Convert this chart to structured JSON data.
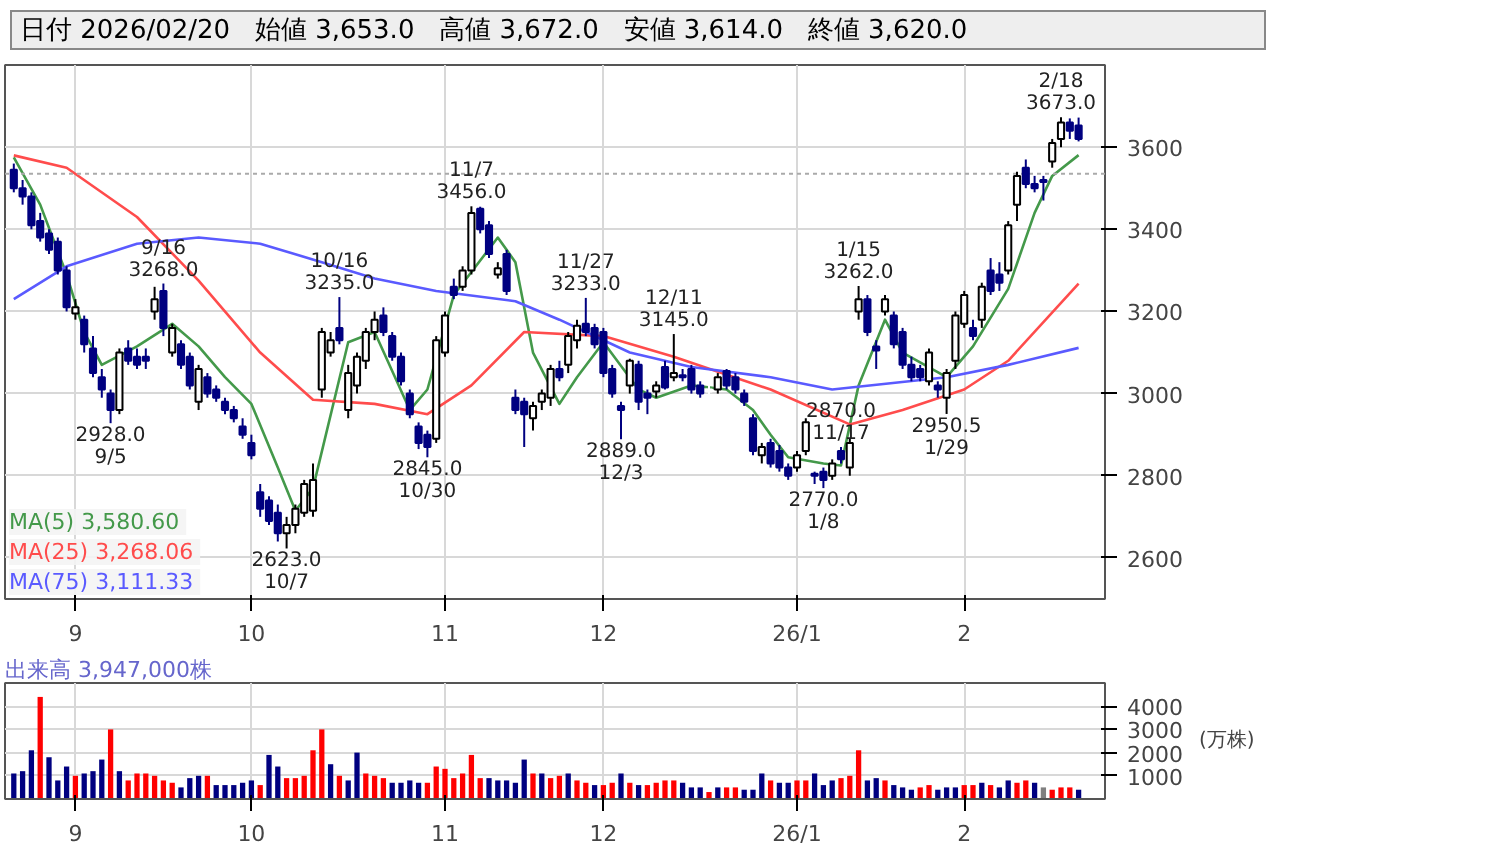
{
  "chart_data": [
    {
      "type": "candlestick",
      "colors": [
        "#000080",
        "#000080",
        "#000080",
        "#000080",
        "#000080",
        "#000080",
        "#000080",
        "#ffffff",
        "#000080",
        "#000080",
        "#000080",
        "#000080",
        "#ffffff",
        "#000080",
        "#000080",
        "#000080",
        "#ffffff",
        "#000080",
        "#ffffff",
        "#000080",
        "#000080",
        "#ffffff",
        "#000080",
        "#000080",
        "#000080",
        "#000080",
        "#000080",
        "#000080",
        "#000080",
        "#000080",
        "#000080",
        "#ffffff",
        "#ffffff",
        "#ffffff",
        "#ffffff",
        "#ffffff",
        "#ffffff",
        "#000080",
        "#ffffff",
        "#ffffff",
        "#ffffff",
        "#ffffff",
        "#000080",
        "#000080",
        "#000080",
        "#000080",
        "#000080",
        "#000080",
        "#ffffff",
        "#ffffff",
        "#000080",
        "#ffffff",
        "#ffffff",
        "#000080",
        "#000080",
        "#ffffff",
        "#000080",
        "#000080",
        "#000080",
        "#ffffff",
        "#ffffff",
        "#ffffff",
        "#000080",
        "#ffffff",
        "#ffffff",
        "#000080",
        "#000080",
        "#000080",
        "#000080",
        "#000080",
        "#ffffff",
        "#000080",
        "#000080",
        "#ffffff",
        "#000080",
        "#ffffff",
        "#000080",
        "#000080",
        "#000080",
        "#ffffff",
        "#ffffff",
        "#000080",
        "#000080",
        "#000080",
        "#000080",
        "#ffffff",
        "#000080",
        "#000080",
        "#000080",
        "#ffffff",
        "#ffffff",
        "#000080",
        "#000080",
        "#ffffff",
        "#000080",
        "#ffffff",
        "#ffffff",
        "#000080",
        "#000080",
        "#ffffff",
        "#000080",
        "#000080",
        "#000080",
        "#000080",
        "#ffffff",
        "#000080",
        "#ffffff",
        "#ffffff",
        "#ffffff",
        "#000080",
        "#ffffff",
        "#000080",
        "#000080",
        "#ffffff",
        "#ffffff",
        "#000080",
        "#000080",
        "#000080",
        "#ffffff",
        "#ffffff",
        "#000080",
        "#000080"
      ],
      "annotations": [
        "日付 2026/02/20",
        "始値 3,653.0",
        "高値 3,672.0",
        "安値 3,614.0",
        "終値 3,620.0",
        {
          "text": "2928.0\n9/5",
          "y": 2928
        },
        {
          "text": "9/16\n3268.0",
          "y": 3268
        },
        {
          "text": "2623.0\n10/7",
          "y": 2623
        },
        {
          "text": "10/16\n3235.0",
          "y": 3235
        },
        {
          "text": "2845.0\n10/30",
          "y": 2845
        },
        {
          "text": "11/7\n3456.0",
          "y": 3456
        },
        {
          "text": "2870.0\n11/17",
          "y": 2870
        },
        {
          "text": "11/27\n3233.0",
          "y": 3233
        },
        {
          "text": "2889.0\n12/3",
          "y": 2889
        },
        {
          "text": "12/11\n3145.0",
          "y": 3145
        },
        {
          "text": "2770.0\n1/8",
          "y": 2770
        },
        {
          "text": "1/15\n3262.0",
          "y": 3262
        },
        {
          "text": "2950.5\n1/29",
          "y": 2950.5
        },
        {
          "text": "2/18\n3673.0",
          "y": 3673
        }
      ],
      "categories": [
        null,
        null,
        null,
        null,
        null,
        null,
        null,
        "9",
        null,
        null,
        null,
        null,
        null,
        null,
        null,
        null,
        null,
        null,
        null,
        null,
        null,
        null,
        null,
        null,
        null,
        null,
        null,
        "10",
        null,
        null,
        null,
        null,
        null,
        null,
        null,
        null,
        null,
        null,
        null,
        null,
        null,
        null,
        null,
        null,
        null,
        null,
        null,
        null,
        null,
        "11",
        null,
        null,
        null,
        null,
        null,
        null,
        null,
        null,
        null,
        null,
        null,
        null,
        null,
        null,
        null,
        null,
        null,
        "12",
        null,
        null,
        null,
        null,
        null,
        null,
        null,
        null,
        null,
        null,
        null,
        null,
        null,
        null,
        null,
        null,
        null,
        null,
        null,
        null,
        null,
        "26/1",
        null,
        null,
        null,
        null,
        null,
        null,
        null,
        null,
        null,
        null,
        null,
        null,
        null,
        null,
        null,
        null,
        null,
        null,
        "2",
        null,
        null,
        null,
        null,
        null,
        null,
        null,
        null,
        null,
        null,
        null,
        null,
        null
      ],
      "ohlc": [
        [
          3545,
          3560,
          3490,
          3500
        ],
        [
          3500,
          3520,
          3460,
          3480
        ],
        [
          3480,
          3490,
          3400,
          3410
        ],
        [
          3420,
          3440,
          3370,
          3380
        ],
        [
          3390,
          3400,
          3340,
          3350
        ],
        [
          3370,
          3380,
          3290,
          3300
        ],
        [
          3300,
          3310,
          3200,
          3210
        ],
        [
          3195,
          3230,
          3180,
          3210
        ],
        [
          3180,
          3190,
          3100,
          3120
        ],
        [
          3110,
          3140,
          3040,
          3050
        ],
        [
          3040,
          3060,
          2990,
          3010
        ],
        [
          3000,
          3010,
          2928,
          2960
        ],
        [
          2960,
          3110,
          2950,
          3100
        ],
        [
          3110,
          3130,
          3070,
          3080
        ],
        [
          3090,
          3110,
          3060,
          3070
        ],
        [
          3090,
          3110,
          3060,
          3080
        ],
        [
          3200,
          3260,
          3180,
          3230
        ],
        [
          3250,
          3268,
          3140,
          3160
        ],
        [
          3100,
          3170,
          3090,
          3160
        ],
        [
          3120,
          3130,
          3060,
          3070
        ],
        [
          3090,
          3100,
          3010,
          3020
        ],
        [
          2980,
          3070,
          2960,
          3060
        ],
        [
          3040,
          3050,
          2990,
          3000
        ],
        [
          3010,
          3020,
          2980,
          2990
        ],
        [
          2980,
          2990,
          2950,
          2960
        ],
        [
          2960,
          2970,
          2930,
          2940
        ],
        [
          2920,
          2940,
          2890,
          2900
        ],
        [
          2880,
          2900,
          2840,
          2850
        ],
        [
          2760,
          2780,
          2700,
          2720
        ],
        [
          2740,
          2750,
          2680,
          2690
        ],
        [
          2710,
          2730,
          2640,
          2660
        ],
        [
          2660,
          2700,
          2623,
          2680
        ],
        [
          2680,
          2730,
          2660,
          2720
        ],
        [
          2710,
          2790,
          2700,
          2780
        ],
        [
          2715,
          2830,
          2700,
          2790
        ],
        [
          3010,
          3160,
          2990,
          3150
        ],
        [
          3100,
          3150,
          3090,
          3130
        ],
        [
          3160,
          3235,
          3120,
          3130
        ],
        [
          2960,
          3070,
          2940,
          3050
        ],
        [
          3020,
          3100,
          3000,
          3090
        ],
        [
          3080,
          3160,
          3060,
          3150
        ],
        [
          3150,
          3200,
          3130,
          3180
        ],
        [
          3190,
          3210,
          3140,
          3150
        ],
        [
          3140,
          3150,
          3080,
          3090
        ],
        [
          3090,
          3100,
          3020,
          3030
        ],
        [
          3000,
          3010,
          2940,
          2950
        ],
        [
          2920,
          2930,
          2865,
          2880
        ],
        [
          2900,
          2910,
          2845,
          2870
        ],
        [
          2890,
          3140,
          2880,
          3130
        ],
        [
          3100,
          3200,
          3090,
          3190
        ],
        [
          3260,
          3280,
          3230,
          3240
        ],
        [
          3260,
          3310,
          3250,
          3300
        ],
        [
          3300,
          3456,
          3290,
          3440
        ],
        [
          3450,
          3455,
          3390,
          3400
        ],
        [
          3410,
          3420,
          3330,
          3340
        ],
        [
          3290,
          3320,
          3280,
          3305
        ],
        [
          3340,
          3350,
          3240,
          3250
        ],
        [
          2990,
          3010,
          2950,
          2960
        ],
        [
          2980,
          2990,
          2870,
          2950
        ],
        [
          2940,
          2980,
          2910,
          2970
        ],
        [
          2980,
          3010,
          2960,
          3000
        ],
        [
          2990,
          3070,
          2970,
          3060
        ],
        [
          3060,
          3080,
          3030,
          3040
        ],
        [
          3070,
          3150,
          3050,
          3140
        ],
        [
          3130,
          3180,
          3110,
          3165
        ],
        [
          3170,
          3233,
          3140,
          3150
        ],
        [
          3160,
          3170,
          3110,
          3120
        ],
        [
          3150,
          3160,
          3040,
          3050
        ],
        [
          3060,
          3070,
          2990,
          3000
        ],
        [
          2970,
          2980,
          2889,
          2960
        ],
        [
          3020,
          3085,
          3000,
          3080
        ],
        [
          3070,
          3080,
          2960,
          2980
        ],
        [
          3000,
          3010,
          2950,
          2990
        ],
        [
          3005,
          3030,
          2990,
          3020
        ],
        [
          3065,
          3080,
          3010,
          3015
        ],
        [
          3040,
          3145,
          3030,
          3050
        ],
        [
          3045,
          3060,
          3030,
          3040
        ],
        [
          3060,
          3070,
          3000,
          3010
        ],
        [
          3020,
          3030,
          2990,
          3000
        ],
        [
          3010,
          3020,
          2990,
          3005
        ],
        [
          3010,
          3050,
          3000,
          3040
        ],
        [
          3055,
          3060,
          3010,
          3020
        ],
        [
          3040,
          3050,
          3000,
          3010
        ],
        [
          3000,
          3010,
          2970,
          2980
        ],
        [
          2940,
          2950,
          2850,
          2860
        ],
        [
          2850,
          2880,
          2830,
          2870
        ],
        [
          2880,
          2890,
          2820,
          2830
        ],
        [
          2860,
          2875,
          2810,
          2820
        ],
        [
          2820,
          2830,
          2790,
          2800
        ],
        [
          2820,
          2860,
          2810,
          2850
        ],
        [
          2860,
          2940,
          2850,
          2930
        ],
        [
          2805,
          2810,
          2780,
          2800
        ],
        [
          2810,
          2820,
          2770,
          2790
        ],
        [
          2800,
          2840,
          2790,
          2830
        ],
        [
          2860,
          2870,
          2830,
          2840
        ],
        [
          2820,
          2890,
          2800,
          2880
        ],
        [
          3200,
          3262,
          3180,
          3230
        ],
        [
          3230,
          3240,
          3140,
          3150
        ],
        [
          3115,
          3130,
          3060,
          3105
        ],
        [
          3200,
          3240,
          3190,
          3230
        ],
        [
          3190,
          3200,
          3110,
          3120
        ],
        [
          3150,
          3160,
          3060,
          3070
        ],
        [
          3070,
          3090,
          3030,
          3040
        ],
        [
          3060,
          3070,
          3030,
          3040
        ],
        [
          3030,
          3110,
          3020,
          3100
        ],
        [
          3020,
          3030,
          2990,
          3010
        ],
        [
          2990,
          3060,
          2950.5,
          3050
        ],
        [
          3080,
          3200,
          3060,
          3190
        ],
        [
          3170,
          3250,
          3160,
          3240
        ],
        [
          3160,
          3180,
          3130,
          3140
        ],
        [
          3180,
          3270,
          3160,
          3260
        ],
        [
          3300,
          3330,
          3240,
          3250
        ],
        [
          3290,
          3320,
          3250,
          3270
        ],
        [
          3300,
          3420,
          3290,
          3410
        ],
        [
          3460,
          3540,
          3420,
          3530
        ],
        [
          3550,
          3570,
          3500,
          3510
        ],
        [
          3510,
          3530,
          3490,
          3500
        ],
        [
          3520,
          3530,
          3470,
          3515
        ],
        [
          3565,
          3620,
          3550,
          3610
        ],
        [
          3620,
          3673,
          3600,
          3660
        ],
        [
          3660,
          3670,
          3620,
          3640
        ],
        [
          3653,
          3672,
          3614,
          3620
        ]
      ],
      "series": [
        {
          "type": "line",
          "name": "MA(5)  3,580.60",
          "color": "#44994a",
          "values": [
            3575,
            null,
            null,
            3460,
            null,
            null,
            3290,
            null,
            3150,
            null,
            3070,
            null,
            null,
            null,
            3115,
            null,
            null,
            null,
            3170,
            null,
            null,
            3115,
            null,
            null,
            3040,
            null,
            null,
            2975,
            null,
            null,
            2820,
            null,
            2715,
            null,
            2770,
            null,
            null,
            null,
            3125,
            null,
            null,
            3150,
            null,
            3055,
            null,
            2960,
            null,
            3010,
            null,
            null,
            3240,
            null,
            null,
            null,
            null,
            3380,
            null,
            3320,
            null,
            3100,
            null,
            null,
            2975,
            null,
            3040,
            null,
            null,
            3125,
            null,
            null,
            null,
            3010,
            null,
            2990,
            null,
            null,
            null,
            3020,
            null,
            null,
            null,
            3010,
            null,
            null,
            2960,
            null,
            2900,
            null,
            2845,
            null,
            null,
            null,
            2830,
            null,
            2825,
            null,
            3020,
            null,
            null,
            3180,
            null,
            3100,
            null,
            null,
            null,
            null,
            3040,
            null,
            null,
            3115,
            null,
            null,
            null,
            3255,
            null,
            null,
            3440,
            null,
            3530,
            null,
            null,
            3580.6
          ]
        },
        {
          "type": "line",
          "name": "MA(25)  3,268.06",
          "color": "#ff4c4c",
          "values": [
            3580,
            null,
            null,
            null,
            null,
            null,
            3550,
            null,
            null,
            null,
            null,
            null,
            null,
            null,
            3430,
            null,
            null,
            null,
            null,
            null,
            null,
            3275,
            null,
            null,
            null,
            null,
            null,
            null,
            3100,
            null,
            null,
            null,
            null,
            null,
            2985,
            null,
            null,
            null,
            null,
            null,
            null,
            2975,
            null,
            null,
            null,
            null,
            null,
            2950,
            null,
            null,
            null,
            null,
            3020,
            null,
            null,
            null,
            null,
            null,
            3150,
            null,
            null,
            null,
            null,
            null,
            null,
            null,
            null,
            3140,
            null,
            null,
            null,
            null,
            null,
            null,
            null,
            3090,
            null,
            null,
            null,
            null,
            null,
            null,
            null,
            null,
            null,
            null,
            3010,
            null,
            null,
            null,
            null,
            null,
            null,
            null,
            null,
            2925,
            null,
            null,
            null,
            null,
            null,
            2960,
            null,
            null,
            null,
            null,
            null,
            null,
            3010,
            null,
            null,
            null,
            null,
            3080,
            null,
            null,
            null,
            null,
            null,
            null,
            null,
            3268.06
          ]
        },
        {
          "type": "line",
          "name": "MA(75)  3,111.33",
          "color": "#5a5aff",
          "values": [
            3230,
            null,
            null,
            null,
            null,
            null,
            3310,
            null,
            null,
            null,
            null,
            null,
            null,
            null,
            3365,
            null,
            null,
            null,
            null,
            null,
            null,
            3380,
            null,
            null,
            null,
            null,
            null,
            null,
            3365,
            null,
            null,
            null,
            null,
            null,
            null,
            3320,
            null,
            null,
            null,
            null,
            null,
            3280,
            null,
            null,
            null,
            null,
            null,
            null,
            3250,
            null,
            null,
            null,
            null,
            null,
            null,
            null,
            null,
            3225,
            null,
            null,
            null,
            null,
            3180,
            null,
            null,
            null,
            null,
            null,
            null,
            null,
            3100,
            null,
            null,
            null,
            null,
            null,
            null,
            3065,
            null,
            null,
            null,
            null,
            null,
            null,
            null,
            null,
            3040,
            null,
            null,
            null,
            null,
            null,
            null,
            3010,
            null,
            null,
            null,
            null,
            null,
            null,
            null,
            null,
            null,
            null,
            null,
            null,
            3040,
            null,
            null,
            null,
            null,
            null,
            null,
            3070,
            null,
            null,
            null,
            null,
            null,
            null,
            null,
            3111.33
          ]
        }
      ],
      "ylim": [
        2500,
        3800
      ],
      "yticks": [
        2600,
        2800,
        3000,
        3200,
        3400,
        3600
      ],
      "ref_lines": [
        {
          "axis": "y",
          "value": 3535,
          "color": "#aaaaaa",
          "line_style": "dotted"
        }
      ],
      "grid": true,
      "legend": "bottom left"
    },
    {
      "type": "bar",
      "title": "出来高 3,947,000株",
      "ylabel": "(万株)",
      "categories": [
        null,
        null,
        null,
        null,
        null,
        null,
        null,
        "9",
        null,
        null,
        null,
        null,
        null,
        null,
        null,
        null,
        null,
        null,
        null,
        null,
        null,
        null,
        null,
        null,
        null,
        null,
        null,
        "10",
        null,
        null,
        null,
        null,
        null,
        null,
        null,
        null,
        null,
        null,
        null,
        null,
        null,
        null,
        null,
        null,
        null,
        null,
        null,
        null,
        null,
        "11",
        null,
        null,
        null,
        null,
        null,
        null,
        null,
        null,
        null,
        null,
        null,
        null,
        null,
        null,
        null,
        null,
        null,
        "12",
        null,
        null,
        null,
        null,
        null,
        null,
        null,
        null,
        null,
        null,
        null,
        null,
        null,
        null,
        null,
        null,
        null,
        null,
        null,
        null,
        null,
        "26/1",
        null,
        null,
        null,
        null,
        null,
        null,
        null,
        null,
        null,
        null,
        null,
        null,
        null,
        null,
        null,
        null,
        null,
        null,
        "2",
        null,
        null,
        null,
        null,
        null,
        null,
        null,
        null,
        null,
        null,
        null,
        null,
        null
      ],
      "values": [
        1100,
        1200,
        2100,
        4400,
        1800,
        800,
        1400,
        1000,
        1100,
        1200,
        1700,
        3000,
        1200,
        800,
        1100,
        1100,
        1000,
        800,
        700,
        500,
        900,
        1000,
        1000,
        600,
        600,
        600,
        700,
        800,
        600,
        1900,
        1400,
        900,
        900,
        1000,
        2100,
        3000,
        1500,
        1000,
        800,
        2000,
        1100,
        1000,
        900,
        700,
        700,
        800,
        700,
        700,
        1400,
        1300,
        900,
        1100,
        1900,
        900,
        900,
        800,
        800,
        700,
        1700,
        1100,
        1100,
        900,
        1000,
        1100,
        800,
        700,
        600,
        600,
        700,
        1100,
        700,
        600,
        600,
        700,
        800,
        800,
        700,
        500,
        500,
        300,
        500,
        500,
        500,
        400,
        400,
        1100,
        800,
        700,
        700,
        800,
        800,
        1100,
        600,
        800,
        900,
        1000,
        2100,
        800,
        900,
        800,
        600,
        500,
        400,
        500,
        600,
        400,
        500,
        500,
        600,
        600,
        700,
        600,
        500,
        800,
        700,
        800,
        700,
        500,
        400,
        500,
        500,
        400
      ],
      "colors": [
        "#000080",
        "#000080",
        "#000080",
        "#ff0000",
        "#000080",
        "#000080",
        "#000080",
        "#ff0000",
        "#000080",
        "#000080",
        "#000080",
        "#ff0000",
        "#000080",
        "#ff0000",
        "#ff0000",
        "#ff0000",
        "#ff0000",
        "#ff0000",
        "#ff0000",
        "#000080",
        "#000080",
        "#000080",
        "#ff0000",
        "#000080",
        "#000080",
        "#000080",
        "#000080",
        "#000080",
        "#ff0000",
        "#000080",
        "#000080",
        "#ff0000",
        "#ff0000",
        "#ff0000",
        "#ff0000",
        "#ff0000",
        "#000080",
        "#ff0000",
        "#000080",
        "#000080",
        "#ff0000",
        "#ff0000",
        "#ff0000",
        "#000080",
        "#000080",
        "#000080",
        "#000080",
        "#ff0000",
        "#ff0000",
        "#ff0000",
        "#ff0000",
        "#ff0000",
        "#ff0000",
        "#ff0000",
        "#000080",
        "#000080",
        "#000080",
        "#000080",
        "#000080",
        "#ff0000",
        "#000080",
        "#ff0000",
        "#ff0000",
        "#000080",
        "#ff0000",
        "#ff0000",
        "#000080",
        "#ff0000",
        "#ff0000",
        "#000080",
        "#ff0000",
        "#000080",
        "#ff0000",
        "#ff0000",
        "#ff0000",
        "#ff0000",
        "#000080",
        "#000080",
        "#000080",
        "#ff0000",
        "#000080",
        "#ff0000",
        "#ff0000",
        "#000080",
        "#000080",
        "#000080",
        "#ff0000",
        "#000080",
        "#000080",
        "#ff0000",
        "#ff0000",
        "#000080",
        "#000080",
        "#000080",
        "#ff0000",
        "#ff0000",
        "#ff0000",
        "#000080",
        "#000080",
        "#ff0000",
        "#000080",
        "#000080",
        "#000080",
        "#ff0000",
        "#ff0000",
        "#000080",
        "#000080",
        "#000080",
        "#ff0000",
        "#ff0000",
        "#000080",
        "#ff0000",
        "#000080",
        "#000080",
        "#ff0000",
        "#ff0000",
        "#000080",
        "#808080",
        "#ff0000",
        "#ff0000",
        "#ff0000",
        "#000080"
      ],
      "ylim": [
        0,
        5000
      ],
      "yticks": [
        1000,
        2000,
        3000,
        4000
      ],
      "grid": true
    }
  ]
}
